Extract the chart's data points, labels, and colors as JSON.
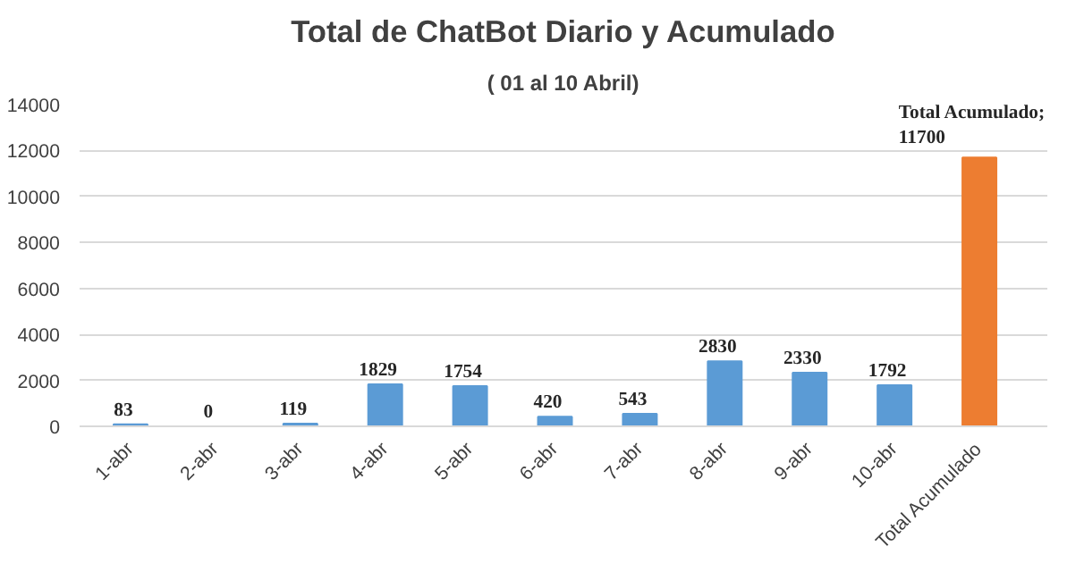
{
  "chart_data": {
    "type": "bar",
    "title": "Total de ChatBot Diario y Acumulado",
    "subtitle": "( 01 al 10 Abril)",
    "categories": [
      "1-abr",
      "2-abr",
      "3-abr",
      "4-abr",
      "5-abr",
      "6-abr",
      "7-abr",
      "8-abr",
      "9-abr",
      "10-abr",
      "Total Acumulado"
    ],
    "values": [
      83,
      0,
      119,
      1829,
      1754,
      420,
      543,
      2830,
      2330,
      1792,
      11700
    ],
    "colors": [
      "#5b9bd5",
      "#5b9bd5",
      "#5b9bd5",
      "#5b9bd5",
      "#5b9bd5",
      "#5b9bd5",
      "#5b9bd5",
      "#5b9bd5",
      "#5b9bd5",
      "#5b9bd5",
      "#ed7d31"
    ],
    "value_labels": [
      "83",
      "0",
      "119",
      "1829",
      "1754",
      "420",
      "543",
      "2830",
      "2330",
      "1792",
      "Total Acumulado;\n11700"
    ],
    "ylim": [
      0,
      14000
    ],
    "yticks": [
      0,
      2000,
      4000,
      6000,
      8000,
      10000,
      12000,
      14000
    ],
    "grid": "y"
  }
}
